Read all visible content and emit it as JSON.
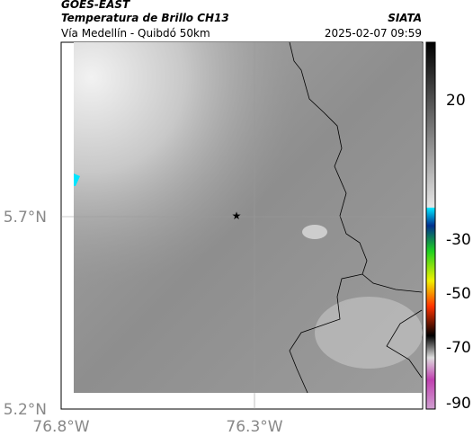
{
  "header": {
    "line1": "GOES-EAST",
    "line2": "Temperatura de Brillo CH13",
    "line3": "Vía Medellín - Quibdó 50km",
    "source": "SIATA",
    "datetime": "2025-02-07 09:59"
  },
  "axes": {
    "lat_labels": [
      "5.7°N",
      "5.2°N"
    ],
    "lon_labels": [
      "76.8°W",
      "76.3°W"
    ]
  },
  "colorbar": {
    "ticks": [
      20,
      -30,
      -50,
      -70,
      -90
    ]
  }
}
